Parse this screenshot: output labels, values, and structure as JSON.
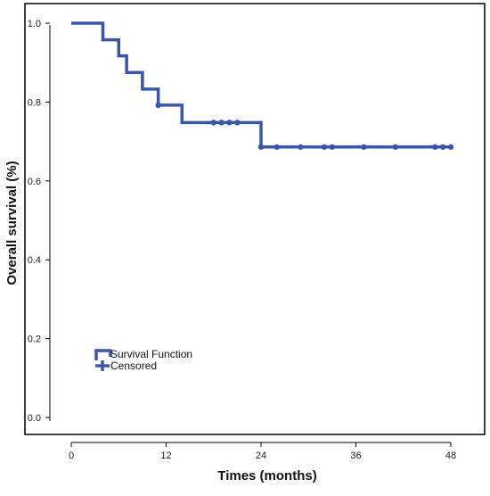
{
  "chart_data": {
    "type": "line",
    "subtype": "kaplan-meier-step",
    "title": "",
    "xlabel": "Times (months)",
    "ylabel": "Overall survival (%)",
    "xlim": [
      0,
      48
    ],
    "ylim": [
      0.0,
      1.0
    ],
    "x_ticks": [
      0,
      12,
      24,
      36,
      48
    ],
    "x_tick_labels": [
      "0",
      "12",
      "24",
      "36",
      "48"
    ],
    "y_ticks": [
      0.0,
      0.2,
      0.4,
      0.6,
      0.8,
      1.0
    ],
    "y_tick_labels": [
      "0.0",
      "0.2",
      "0.4",
      "0.6",
      "0.8",
      "1.0"
    ],
    "grid": false,
    "legend_position": "bottom-left",
    "series_color": "#3a56a8",
    "survival_function": {
      "name": "Survival Function",
      "steps": [
        {
          "x": 0,
          "y": 1.0
        },
        {
          "x": 4,
          "y": 0.958
        },
        {
          "x": 6,
          "y": 0.917
        },
        {
          "x": 7,
          "y": 0.875
        },
        {
          "x": 9,
          "y": 0.833
        },
        {
          "x": 11,
          "y": 0.792
        },
        {
          "x": 14,
          "y": 0.748
        },
        {
          "x": 24,
          "y": 0.686
        }
      ],
      "end_x": 48
    },
    "censored": {
      "name": "Censored",
      "points": [
        {
          "x": 11,
          "y": 0.792
        },
        {
          "x": 18,
          "y": 0.748
        },
        {
          "x": 19,
          "y": 0.748
        },
        {
          "x": 20,
          "y": 0.748
        },
        {
          "x": 21,
          "y": 0.748
        },
        {
          "x": 24,
          "y": 0.686
        },
        {
          "x": 26,
          "y": 0.686
        },
        {
          "x": 29,
          "y": 0.686
        },
        {
          "x": 32,
          "y": 0.686
        },
        {
          "x": 33,
          "y": 0.686
        },
        {
          "x": 37,
          "y": 0.686
        },
        {
          "x": 41,
          "y": 0.686
        },
        {
          "x": 46,
          "y": 0.686
        },
        {
          "x": 47,
          "y": 0.686
        },
        {
          "x": 48,
          "y": 0.686
        }
      ]
    }
  }
}
